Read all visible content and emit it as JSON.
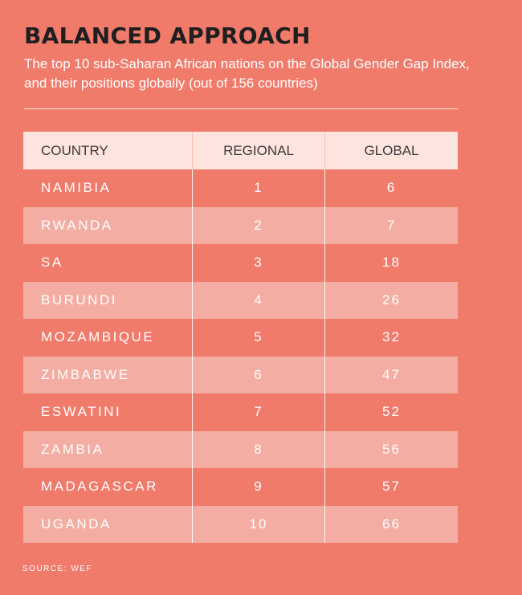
{
  "title": "BALANCED APPROACH",
  "subtitle": "The top 10 sub-Saharan African nations on the Global Gender Gap Index, and their positions globally (out of 156 countries)",
  "source": "SOURCE: WEF",
  "colors": {
    "background": "#f07b6b",
    "header_row": "#fde4de",
    "alt_row": "#f4ada2",
    "text_white": "#ffffff",
    "title": "#1f1f1f"
  },
  "chart_data": {
    "type": "table",
    "title": "BALANCED APPROACH",
    "subtitle": "The top 10 sub-Saharan African nations on the Global Gender Gap Index, and their positions globally (out of 156 countries)",
    "columns": [
      "COUNTRY",
      "REGIONAL",
      "GLOBAL"
    ],
    "rows": [
      [
        "NAMIBIA",
        "1",
        "6"
      ],
      [
        "RWANDA",
        "2",
        "7"
      ],
      [
        "SA",
        "3",
        "18"
      ],
      [
        "BURUNDI",
        "4",
        "26"
      ],
      [
        "MOZAMBIQUE",
        "5",
        "32"
      ],
      [
        "ZIMBABWE",
        "6",
        "47"
      ],
      [
        "ESWATINI",
        "7",
        "52"
      ],
      [
        "ZAMBIA",
        "8",
        "56"
      ],
      [
        "MADAGASCAR",
        "9",
        "57"
      ],
      [
        "UGANDA",
        "10",
        "66"
      ]
    ]
  }
}
